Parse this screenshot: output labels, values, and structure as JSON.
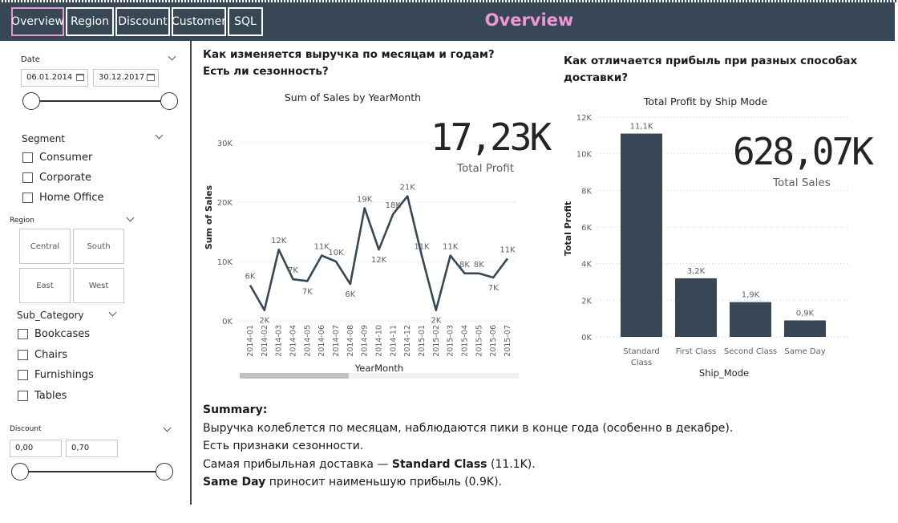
{
  "nav": {
    "tabs": [
      {
        "label": "Overview",
        "active": true
      },
      {
        "label": "Region",
        "active": false
      },
      {
        "label": "Discount",
        "active": false
      },
      {
        "label": "Customer",
        "active": false
      },
      {
        "label": "SQL",
        "active": false
      }
    ],
    "title": "Overview"
  },
  "filters": {
    "date": {
      "label": "Date",
      "start": "06.01.2014",
      "end": "30.12.2017"
    },
    "segment": {
      "label": "Segment",
      "options": [
        "Consumer",
        "Corporate",
        "Home Office"
      ]
    },
    "region": {
      "label": "Region",
      "tiles": [
        "Central",
        "South",
        "East",
        "West"
      ]
    },
    "sub_category": {
      "label": "Sub_Category",
      "options": [
        "Bookcases",
        "Chairs",
        "Furnishings",
        "Tables"
      ]
    },
    "discount": {
      "label": "Discount",
      "min": "0,00",
      "max": "0,70"
    }
  },
  "questions": {
    "left": [
      "Как изменяется выручка по месяцам и годам?",
      "Есть ли сезонность?"
    ],
    "right": [
      "Как отличается прибыль при разных способах",
      "доставки?"
    ]
  },
  "cards": {
    "profit": {
      "value": "17,23K",
      "label": "Total Profit"
    },
    "sales": {
      "value": "628,07K",
      "label": "Total Sales"
    }
  },
  "chart_data": [
    {
      "type": "line",
      "title": "Sum of Sales by YearMonth",
      "xlabel": "YearMonth",
      "ylabel": "Sum of Sales",
      "ylim": [
        0,
        30000
      ],
      "yticks": [
        "0K",
        "10K",
        "20K",
        "30K"
      ],
      "x": [
        "2014-01",
        "2014-02",
        "2014-03",
        "2014-04",
        "2014-05",
        "2014-06",
        "2014-07",
        "2014-08",
        "2014-09",
        "2014-10",
        "2014-11",
        "2014-12",
        "2015-01",
        "2015-02",
        "2015-03",
        "2015-04",
        "2015-05",
        "2015-06",
        "2015-07"
      ],
      "values": [
        6000,
        1800,
        12000,
        7000,
        6700,
        11000,
        10000,
        6200,
        19000,
        12000,
        18000,
        21000,
        11000,
        1800,
        11000,
        8000,
        8000,
        7300,
        10500
      ],
      "labels": [
        "6K",
        "2K",
        "12K",
        "7K",
        "7K",
        "11K",
        "10K",
        "6K",
        "19K",
        "12K",
        "18K",
        "21K",
        "11K",
        "2K",
        "11K",
        "8K",
        "8K",
        "7K",
        "11K"
      ],
      "color": "#374756",
      "grid": true
    },
    {
      "type": "bar",
      "title": "Total Profit by Ship Mode",
      "xlabel": "Ship_Mode",
      "ylabel": "Total Profit",
      "ylim": [
        0,
        12000
      ],
      "yticks": [
        "0K",
        "2K",
        "4K",
        "6K",
        "8K",
        "10K",
        "12K"
      ],
      "categories": [
        "Standard Class",
        "First Class",
        "Second Class",
        "Same Day"
      ],
      "values": [
        11100,
        3200,
        1900,
        900
      ],
      "labels": [
        "11,1K",
        "3,2K",
        "1,9K",
        "0,9K"
      ],
      "color": "#374756",
      "grid": true
    }
  ],
  "summary": {
    "heading": "Summary:",
    "line1": "Выручка колеблется по месяцам, наблюдаются пики в конце года (особенно в декабре).",
    "line2": "Есть признаки сезонности.",
    "line3_pre": "Самая прибыльная доставка — ",
    "line3_bold": "Standard Class",
    "line3_post": " (11.1K).",
    "line4_bold": "Same Day",
    "line4_post": " приносит наименьшую прибыль (0.9K)."
  }
}
